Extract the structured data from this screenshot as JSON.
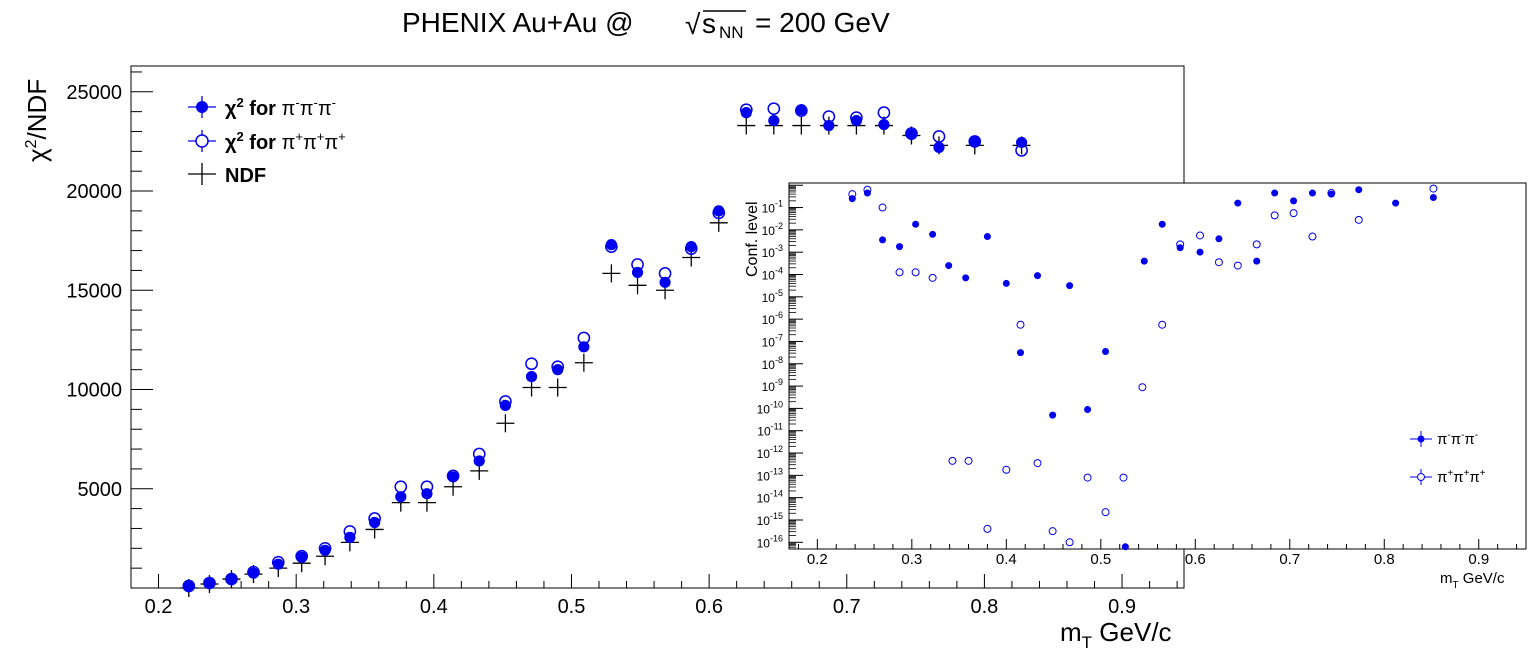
{
  "title": {
    "main": "PHENIX Au+Au @",
    "sqrt": "√",
    "s": "s",
    "nn": "NN",
    "energy": "= 200 GeV"
  },
  "colors": {
    "blue": "#0000ee",
    "black": "#000000"
  },
  "chart_data": [
    {
      "type": "scatter",
      "name": "main",
      "xlabel": "m",
      "xlabel_sub": "T",
      "xlabel_unit": "GeV/c",
      "ylabel": "χ",
      "ylabel_sup": "2",
      "ylabel_rest": "/NDF",
      "xlim": [
        0.18,
        0.945
      ],
      "ylim": [
        0,
        26300
      ],
      "xticks": [
        "0.2",
        "0.3",
        "0.4",
        "0.5",
        "0.6",
        "0.7",
        "0.8",
        "0.9"
      ],
      "yticks": [
        "5000",
        "10000",
        "15000",
        "20000",
        "25000"
      ],
      "legend": {
        "position": "top-left",
        "entries": [
          {
            "prefix": "χ",
            "sup": "2",
            "mid": " for ",
            "particles": [
              [
                "π",
                "-"
              ],
              [
                "π",
                "-"
              ],
              [
                "π",
                "-"
              ]
            ]
          },
          {
            "prefix": "χ",
            "sup": "2",
            "mid": " for ",
            "particles": [
              [
                "π",
                "+"
              ],
              [
                "π",
                "+"
              ],
              [
                "π",
                "+"
              ]
            ]
          },
          {
            "prefix": "NDF",
            "sup": "",
            "mid": "",
            "particles": []
          }
        ]
      },
      "x": [
        0.222,
        0.237,
        0.253,
        0.269,
        0.287,
        0.304,
        0.321,
        0.339,
        0.357,
        0.376,
        0.395,
        0.414,
        0.433,
        0.452,
        0.471,
        0.49,
        0.509,
        0.529,
        0.548,
        0.568,
        0.587,
        0.607,
        0.627,
        0.647,
        0.667,
        0.687,
        0.707,
        0.727,
        0.747,
        0.767,
        0.793,
        0.827
      ],
      "series": [
        {
          "name": "χ² for π⁻π⁻π⁻",
          "marker": "filled",
          "values": [
            100,
            250,
            450,
            750,
            1200,
            1550,
            1900,
            2550,
            3300,
            4600,
            4750,
            5600,
            6400,
            9200,
            10650,
            11000,
            12150,
            17300,
            15900,
            15400,
            17200,
            19000,
            23950,
            23550,
            24100,
            23300,
            23550,
            23350,
            22850,
            22200,
            22500,
            22450
          ]
        },
        {
          "name": "χ² for π⁺π⁺π⁺",
          "marker": "open",
          "values": [
            100,
            250,
            450,
            800,
            1300,
            1600,
            2000,
            2850,
            3500,
            5100,
            5100,
            5650,
            6750,
            9400,
            11300,
            11150,
            12600,
            17200,
            16300,
            15850,
            17100,
            18900,
            24100,
            24150,
            24050,
            23750,
            23700,
            23950,
            22900,
            22750,
            22500,
            22050
          ]
        },
        {
          "name": "NDF",
          "marker": "cross",
          "values": [
            0,
            200,
            450,
            700,
            1000,
            1250,
            1600,
            2300,
            2950,
            4300,
            4300,
            5100,
            5900,
            8300,
            10100,
            10100,
            11350,
            15850,
            15250,
            15000,
            16650,
            18400,
            23300,
            23300,
            23300,
            23300,
            23300,
            23300,
            22800,
            22300,
            22300,
            22300
          ]
        }
      ]
    },
    {
      "type": "scatter",
      "name": "inset",
      "yscale": "log",
      "xlabel": "m",
      "xlabel_sub": "T",
      "xlabel_unit": "GeV/c",
      "ylabel": "Conf. level",
      "xlim": [
        0.17,
        0.95
      ],
      "ylim_exp": [
        -16.3,
        0.1
      ],
      "xticks": [
        "0.2",
        "0.3",
        "0.4",
        "0.5",
        "0.6",
        "0.7",
        "0.8",
        "0.9"
      ],
      "ytick_base": "10",
      "ytick_exponents": [
        "-16",
        "-15",
        "-14",
        "-13",
        "-12",
        "-11",
        "-10",
        "-9",
        "-8",
        "-7",
        "-6",
        "-5",
        "-4",
        "-3",
        "-2",
        "-1"
      ],
      "legend": {
        "position": "bottom-right",
        "entries": [
          {
            "particles": [
              [
                "π",
                "-"
              ],
              [
                "π",
                "-"
              ],
              [
                "π",
                "-"
              ]
            ]
          },
          {
            "particles": [
              [
                "π",
                "+"
              ],
              [
                "π",
                "+"
              ],
              [
                "π",
                "+"
              ]
            ]
          }
        ]
      },
      "series": [
        {
          "name": "π⁻π⁻π⁻",
          "marker": "filled",
          "x": [
            0.237,
            0.253,
            0.269,
            0.287,
            0.304,
            0.322,
            0.339,
            0.357,
            0.38,
            0.4,
            0.433,
            0.467,
            0.415,
            0.449,
            0.486,
            0.505,
            0.526,
            0.546,
            0.565,
            0.584,
            0.605,
            0.625,
            0.645,
            0.665,
            0.684,
            0.704,
            0.724,
            0.744,
            0.773,
            0.812,
            0.852
          ],
          "log10": [
            -0.6,
            -0.35,
            -2.45,
            -2.75,
            -1.75,
            -2.2,
            -3.6,
            -4.15,
            -2.3,
            -4.4,
            -4.05,
            -4.5,
            -7.5,
            -10.3,
            -10.05,
            -7.45,
            -16.2,
            -3.4,
            -1.75,
            -2.8,
            -3.0,
            -2.4,
            -0.8,
            -3.4,
            -0.35,
            -0.7,
            -0.35,
            -0.4,
            -0.2,
            -0.8,
            -0.55
          ]
        },
        {
          "name": "π⁺π⁺π⁺",
          "marker": "open",
          "x": [
            0.237,
            0.253,
            0.269,
            0.287,
            0.304,
            0.322,
            0.343,
            0.36,
            0.38,
            0.4,
            0.415,
            0.433,
            0.449,
            0.467,
            0.486,
            0.505,
            0.524,
            0.544,
            0.565,
            0.584,
            0.605,
            0.625,
            0.645,
            0.665,
            0.684,
            0.704,
            0.724,
            0.744,
            0.773,
            0.852
          ],
          "log10": [
            -0.4,
            -0.2,
            -1.0,
            -3.9,
            -3.9,
            -4.15,
            -12.35,
            -12.35,
            -15.4,
            -12.75,
            -6.25,
            -12.45,
            -15.5,
            -16.0,
            -13.1,
            -14.65,
            -13.1,
            -9.05,
            -6.25,
            -2.65,
            -2.25,
            -3.45,
            -3.6,
            -2.65,
            -1.35,
            -1.25,
            -2.3,
            -0.35,
            -1.55,
            -0.15
          ]
        }
      ]
    }
  ]
}
